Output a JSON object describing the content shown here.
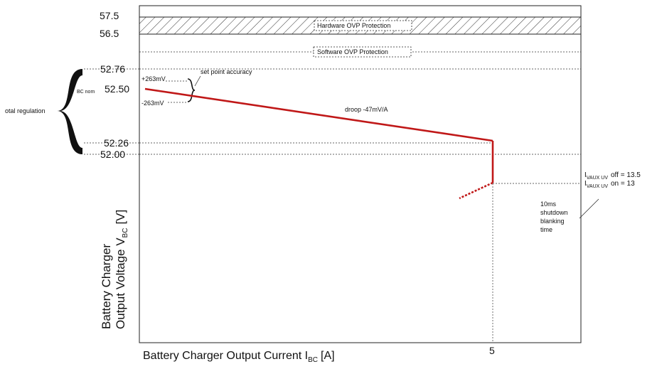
{
  "y_ticks": [
    "57.5",
    "56.5",
    "52.76",
    "52.50",
    "52.26",
    "52.00"
  ],
  "y_axis_label": {
    "line1": "Battery Charger",
    "line2": "Output Voltage V",
    "sub": "BC",
    "unit": "[V]"
  },
  "x_axis_label": {
    "main": "Battery Charger Output Current I",
    "sub": "BC",
    "unit": "[A]"
  },
  "x_ticks": [
    "5"
  ],
  "hardware_ovp_label": "Hardware OVP Protection",
  "software_ovp_label": "Software OVP Protection",
  "total_regulation_label": "otal regulation",
  "bc_nom_label": "BC nom",
  "plus_mv_label": "+263mV",
  "minus_mv_label": "-263mV",
  "set_point_label": "set point accuracy",
  "droop_label": "droop -47mV/A",
  "vaux_off": {
    "prefix": "I",
    "sub": "VAUX UV",
    "text": "off = 13.5"
  },
  "vaux_on": {
    "prefix": "I",
    "sub": "VAUX UV",
    "text": "on = 13"
  },
  "shutdown_note": [
    "10ms",
    "shutdown",
    "blanking",
    "time"
  ],
  "colors": {
    "curve": "#c01818",
    "axes": "#222222",
    "hatch": "#333333"
  },
  "chart_data": {
    "type": "line",
    "title": "",
    "xlabel": "Battery Charger Output Current I_BC [A]",
    "ylabel": "Battery Charger Output Voltage V_BC [V]",
    "series": [
      {
        "name": "",
        "x": [
          0,
          5,
          5
        ],
        "y": [
          52.5,
          52.26,
          51.98
        ]
      }
    ],
    "y_ticks": [
      57.5,
      56.5,
      52.76,
      52.5,
      52.26,
      52.0
    ],
    "x_ticks": [
      5
    ],
    "bands": [
      {
        "label": "Hardware OVP Protection",
        "from": 56.5,
        "to": 57.5
      }
    ],
    "reference_lines": [
      {
        "label": "Software OVP Protection"
      }
    ],
    "annotations": [
      "+263mV",
      "-263mV",
      "set point accuracy",
      "droop -47mV/A",
      "10ms shutdown blanking time"
    ]
  }
}
